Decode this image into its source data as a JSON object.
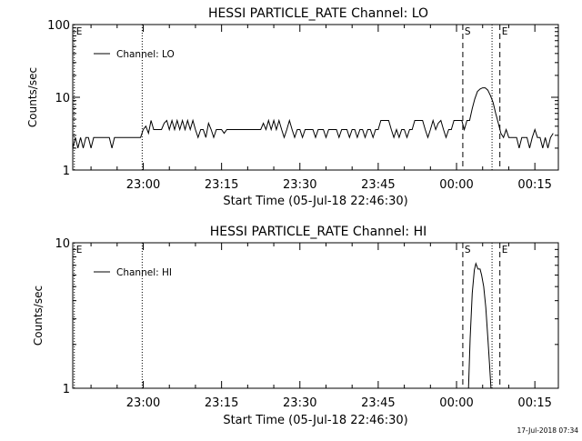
{
  "chart_data": [
    {
      "type": "line",
      "title": "HESSI PARTICLE_RATE Channel: LO",
      "ylabel": "Counts/sec",
      "xlabel": "Start Time (05-Jul-18 22:46:30)",
      "x_unit": "minutes after 22:46:30",
      "y_scale": "log",
      "ylim": [
        1,
        100
      ],
      "xlim": [
        0,
        93
      ],
      "grid": false,
      "legend": "top-left",
      "y_ticks": [
        {
          "value": 1,
          "label": "1"
        },
        {
          "value": 10,
          "label": "10"
        },
        {
          "value": 100,
          "label": "100"
        }
      ],
      "x_ticks": [
        {
          "value": 13.5,
          "label": "23:00"
        },
        {
          "value": 28.5,
          "label": "23:15"
        },
        {
          "value": 43.5,
          "label": "23:30"
        },
        {
          "value": 58.5,
          "label": "23:45"
        },
        {
          "value": 73.5,
          "label": "00:00"
        },
        {
          "value": 88.5,
          "label": "00:15"
        }
      ],
      "markers": [
        {
          "x": 0.3,
          "label": "E",
          "style": "dotted"
        },
        {
          "x": 13.3,
          "label": "",
          "style": "dotted"
        },
        {
          "x": 74.7,
          "label": "S",
          "style": "dashed"
        },
        {
          "x": 80.3,
          "label": "",
          "style": "dotted"
        },
        {
          "x": 81.8,
          "label": "E",
          "style": "dashed"
        },
        {
          "x": 93.0,
          "label": "",
          "style": "dotted"
        }
      ],
      "series": [
        {
          "name": "Channel: LO",
          "x": [
            0,
            0.5,
            1,
            1.5,
            2,
            2.5,
            3,
            3.5,
            4,
            4.5,
            5,
            6,
            7,
            7.5,
            8,
            9,
            10,
            11,
            12,
            13,
            13.5,
            14,
            14.5,
            15,
            15.5,
            16,
            16.5,
            17,
            17.5,
            18,
            18.5,
            19,
            19.5,
            20,
            20.5,
            21,
            21.5,
            22,
            22.5,
            23,
            23.5,
            24,
            24.5,
            25,
            25.5,
            26,
            26.5,
            27,
            27.5,
            28,
            28.5,
            29,
            29.5,
            30,
            31,
            32,
            33,
            34,
            35,
            36,
            36.5,
            37,
            37.5,
            38,
            38.5,
            39,
            39.5,
            40,
            40.5,
            41,
            41.5,
            42,
            42.5,
            43,
            43.5,
            44,
            44.5,
            45,
            45.5,
            46,
            46.5,
            47,
            47.5,
            48,
            48.5,
            49,
            49.5,
            50,
            50.5,
            51,
            51.5,
            52,
            52.5,
            53,
            53.5,
            54,
            54.5,
            55,
            55.5,
            56,
            56.5,
            57,
            57.5,
            58,
            58.5,
            59,
            59.5,
            60,
            60.5,
            61,
            61.5,
            62,
            62.5,
            63,
            63.5,
            64,
            64.5,
            65,
            65.5,
            66,
            66.5,
            67,
            67.5,
            68,
            68.5,
            69,
            69.5,
            70,
            70.5,
            71,
            71.5,
            72,
            72.5,
            73,
            73.5,
            74,
            74.5,
            75,
            75.5,
            76,
            76.5,
            77,
            77.5,
            78,
            78.5,
            79,
            79.5,
            80,
            80.5,
            81,
            81.5,
            82,
            82.5,
            83,
            83.5,
            84,
            84.5,
            85,
            85.5,
            86,
            86.5,
            87,
            87.5,
            88,
            88.5,
            89,
            89.5,
            90,
            90.5,
            91,
            91.5,
            92
          ],
          "values": [
            2.0,
            2.8,
            2.0,
            2.8,
            2.0,
            2.8,
            2.8,
            2.0,
            2.8,
            2.8,
            2.8,
            2.8,
            2.8,
            2.0,
            2.8,
            2.8,
            2.8,
            2.8,
            2.8,
            2.8,
            3.6,
            4.0,
            3.2,
            4.8,
            3.6,
            3.6,
            3.6,
            3.6,
            4.4,
            4.8,
            3.6,
            4.8,
            3.6,
            4.8,
            3.6,
            4.8,
            3.6,
            4.8,
            3.6,
            4.8,
            3.6,
            2.8,
            3.6,
            3.6,
            2.8,
            4.4,
            3.6,
            2.8,
            3.6,
            3.6,
            3.6,
            3.2,
            3.6,
            3.6,
            3.6,
            3.6,
            3.6,
            3.6,
            3.6,
            3.6,
            4.4,
            3.6,
            4.8,
            3.6,
            4.8,
            3.6,
            4.8,
            3.6,
            2.8,
            3.6,
            4.8,
            3.6,
            2.8,
            3.6,
            3.6,
            2.8,
            3.6,
            3.6,
            3.6,
            3.6,
            2.8,
            3.6,
            3.6,
            3.6,
            2.8,
            3.6,
            3.6,
            3.6,
            3.6,
            2.8,
            3.6,
            3.6,
            3.6,
            2.8,
            3.6,
            3.6,
            2.8,
            3.6,
            3.6,
            2.8,
            3.6,
            3.6,
            2.8,
            3.6,
            3.6,
            4.8,
            4.8,
            4.8,
            4.8,
            3.6,
            2.8,
            3.6,
            2.8,
            3.6,
            3.6,
            2.8,
            3.6,
            3.6,
            4.8,
            4.8,
            4.8,
            4.8,
            3.6,
            2.8,
            3.6,
            4.8,
            3.6,
            4.4,
            4.8,
            3.6,
            2.8,
            3.6,
            3.6,
            4.8,
            4.8,
            4.8,
            4.8,
            3.6,
            4.8,
            4.8,
            7.0,
            9.5,
            12.0,
            13.0,
            13.5,
            13.5,
            12.5,
            10.5,
            8.5,
            6.0,
            4.4,
            3.2,
            2.8,
            3.6,
            2.8,
            2.8,
            2.8,
            2.8,
            2.0,
            2.8,
            2.8,
            2.8,
            2.0,
            2.8,
            3.6,
            2.8,
            2.8,
            2.0,
            2.8,
            2.0,
            2.8,
            3.2
          ]
        }
      ]
    },
    {
      "type": "line",
      "title": "HESSI PARTICLE_RATE Channel: HI",
      "ylabel": "Counts/sec",
      "xlabel": "Start Time (05-Jul-18 22:46:30)",
      "x_unit": "minutes after 22:46:30",
      "y_scale": "log",
      "ylim": [
        1,
        10
      ],
      "xlim": [
        0,
        93
      ],
      "grid": false,
      "legend": "top-left",
      "y_ticks": [
        {
          "value": 1,
          "label": "1"
        },
        {
          "value": 10,
          "label": "10"
        }
      ],
      "x_ticks": [
        {
          "value": 13.5,
          "label": "23:00"
        },
        {
          "value": 28.5,
          "label": "23:15"
        },
        {
          "value": 43.5,
          "label": "23:30"
        },
        {
          "value": 58.5,
          "label": "23:45"
        },
        {
          "value": 73.5,
          "label": "00:00"
        },
        {
          "value": 88.5,
          "label": "00:15"
        }
      ],
      "markers": [
        {
          "x": 0.3,
          "label": "E",
          "style": "dotted"
        },
        {
          "x": 13.3,
          "label": "",
          "style": "dotted"
        },
        {
          "x": 74.7,
          "label": "S",
          "style": "dashed"
        },
        {
          "x": 80.3,
          "label": "",
          "style": "dotted"
        },
        {
          "x": 81.8,
          "label": "E",
          "style": "dashed"
        },
        {
          "x": 93.0,
          "label": "",
          "style": "dotted"
        }
      ],
      "series": [
        {
          "name": "Channel: HI",
          "x": [
            75.8,
            76.1,
            76.5,
            76.9,
            77.2,
            77.6,
            78.0,
            78.3,
            78.7,
            79.1,
            79.5,
            79.8,
            80.1
          ],
          "values": [
            1.0,
            2.2,
            4.5,
            6.5,
            7.2,
            6.6,
            6.6,
            6.0,
            5.0,
            3.6,
            2.2,
            1.5,
            1.0
          ]
        }
      ]
    }
  ],
  "footer": {
    "timestamp": "17-Jul-2018 07:34"
  }
}
